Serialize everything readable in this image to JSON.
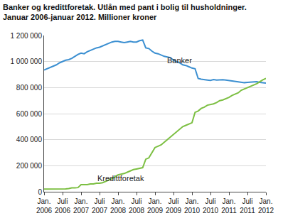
{
  "chart_data": {
    "type": "line",
    "title": "Banker og kredittforetak. Utlån med pant i bolig til husholdninger.\nJanuar 2006-januar 2012. Millioner kroner",
    "categories": [
      "Jan. 2006",
      null,
      null,
      null,
      null,
      null,
      "Juli 2006",
      null,
      null,
      null,
      null,
      null,
      "Jan. 2007",
      null,
      null,
      null,
      null,
      null,
      "Juli 2007",
      null,
      null,
      null,
      null,
      null,
      "Jan. 2008",
      null,
      null,
      null,
      null,
      null,
      "Juli 2008",
      null,
      null,
      null,
      null,
      null,
      "Jan. 2009",
      null,
      null,
      null,
      null,
      null,
      "Juli 2009",
      null,
      null,
      null,
      null,
      null,
      "Jan. 2010",
      null,
      null,
      null,
      null,
      null,
      "Juli 2010",
      null,
      null,
      null,
      null,
      null,
      "Jan. 2011",
      null,
      null,
      null,
      null,
      null,
      "Juli 2011",
      null,
      null,
      null,
      null,
      null,
      "Jan. 2012"
    ],
    "series": [
      {
        "color": "#3b8fd1",
        "values": [
          935000,
          945000,
          955000,
          965000,
          975000,
          990000,
          1000000,
          1010000,
          1015000,
          1025000,
          1040000,
          1055000,
          1065000,
          1060000,
          1075000,
          1085000,
          1095000,
          1105000,
          1110000,
          1120000,
          1130000,
          1140000,
          1150000,
          1155000,
          1155000,
          1150000,
          1145000,
          1150000,
          1155000,
          1150000,
          1150000,
          1160000,
          1165000,
          1105000,
          1100000,
          1080000,
          1065000,
          1060000,
          1050000,
          1040000,
          1035000,
          1030000,
          1010000,
          1000000,
          990000,
          975000,
          970000,
          960000,
          950000,
          945000,
          870000,
          865000,
          860000,
          858000,
          855000,
          862000,
          858000,
          860000,
          860000,
          858000,
          855000,
          850000,
          845000,
          842000,
          840000,
          838000,
          840000,
          842000,
          845000,
          845000,
          840000,
          838000,
          835000
        ]
      },
      {
        "color": "#7cbf42",
        "values": [
          20000,
          20000,
          20000,
          20000,
          20000,
          20000,
          22000,
          22000,
          25000,
          30000,
          30000,
          32000,
          55000,
          55000,
          55000,
          60000,
          60000,
          65000,
          65000,
          70000,
          80000,
          90000,
          100000,
          115000,
          130000,
          135000,
          140000,
          150000,
          160000,
          170000,
          175000,
          180000,
          185000,
          250000,
          260000,
          300000,
          340000,
          350000,
          360000,
          380000,
          400000,
          420000,
          440000,
          460000,
          480000,
          500000,
          510000,
          520000,
          530000,
          610000,
          620000,
          640000,
          650000,
          665000,
          670000,
          675000,
          685000,
          700000,
          705000,
          715000,
          725000,
          740000,
          750000,
          760000,
          780000,
          790000,
          800000,
          810000,
          820000,
          830000,
          845000,
          860000,
          870000
        ]
      }
    ],
    "annotations": [
      {
        "text": "Banker",
        "x": 44,
        "y": 1010000
      },
      {
        "text": "Kredittforetak",
        "x": 25,
        "y": 105000
      }
    ],
    "ylim": [
      0,
      1200000
    ],
    "yticks": [
      0,
      {
        "value": 200000,
        "label": "200 000"
      },
      {
        "value": 400000,
        "label": "400 000"
      },
      {
        "value": 600000,
        "label": "600 000"
      },
      {
        "value": 800000,
        "label": "800 000"
      },
      {
        "value": 1000000,
        "label": "1 000 000"
      },
      {
        "value": 1200000,
        "label": "1 200 000"
      }
    ],
    "grid": true
  }
}
